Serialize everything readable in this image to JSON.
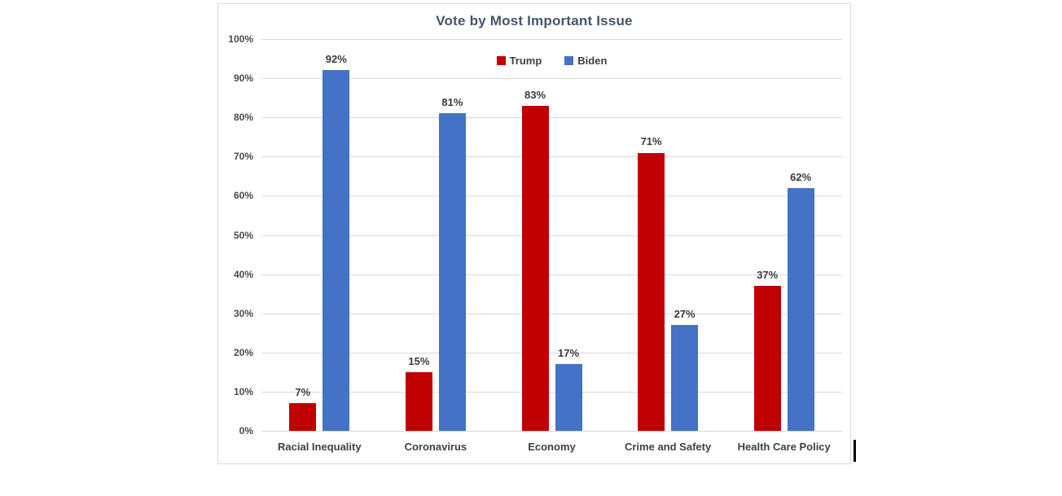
{
  "page": {
    "background": "#FFFFFF"
  },
  "chart_data": {
    "type": "bar",
    "title": "Vote by Most Important Issue",
    "categories": [
      "Racial Inequality",
      "Coronavirus",
      "Economy",
      "Crime and Safety",
      "Health Care Policy"
    ],
    "series": [
      {
        "name": "Trump",
        "color": "#C00000",
        "values": [
          7,
          15,
          83,
          71,
          37
        ]
      },
      {
        "name": "Biden",
        "color": "#4472C4",
        "values": [
          92,
          81,
          17,
          27,
          62
        ]
      }
    ],
    "data_labels": [
      "7%",
      "92%",
      "15%",
      "81%",
      "83%",
      "17%",
      "71%",
      "27%",
      "37%",
      "62%"
    ],
    "value_suffix": "%",
    "ylim": [
      0,
      100
    ],
    "y_ticks": [
      "0%",
      "10%",
      "20%",
      "30%",
      "40%",
      "50%",
      "60%",
      "70%",
      "80%",
      "90%",
      "100%"
    ],
    "grid": true,
    "legend_position": "top-center"
  },
  "colors": {
    "gridline": "#D9D9D9",
    "chart_border": "#D9D9D9",
    "title_text": "#44546A",
    "axis_text": "#404040",
    "cursor": "#000000"
  }
}
